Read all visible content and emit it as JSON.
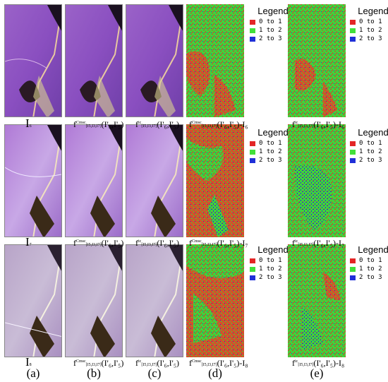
{
  "legend": {
    "title": "Legend",
    "items": [
      {
        "text": "0 to 1",
        "color": "#e32626"
      },
      {
        "text": "1 to 2",
        "color": "#42e03b"
      },
      {
        "text": "2 to 3",
        "color": "#1f2fd8"
      }
    ]
  },
  "rows": [
    {
      "I_label": "I",
      "I_sub": "6",
      "b_main": "f",
      "b_sup": "Cmsc",
      "b_sub": "[I5,I3,I7]",
      "b_arg": "(I'₆,I'₅)",
      "c_main": "f",
      "c_sup": "ic",
      "c_sub": "[I5,I3,I7]",
      "c_arg": "(I'₆,I'₅)",
      "d_main": "f",
      "d_sup": "Cmsc",
      "d_sub": "[I5,I3,I7]",
      "d_arg": "(I'₆,I'₅)-I₆",
      "e_main": "f",
      "e_sup": "ic",
      "e_sub": "[I5,I3,I7]",
      "e_arg": "(I'₆,I'₅)-I₆"
    },
    {
      "I_label": "I",
      "I_sub": "7",
      "b_main": "f",
      "b_sup": "Cmsc",
      "b_sub": "[I5,I3,I7]",
      "b_arg": "(I'₆,I'₅)",
      "c_main": "f",
      "c_sup": "ic",
      "c_sub": "[I5,I3,I7]",
      "c_arg": "(I'₆,I'₅)",
      "d_main": "f",
      "d_sup": "Cmsc",
      "d_sub": "[I5,I3,I7]",
      "d_arg": "(I'₆,I'₅)-I₇",
      "e_main": "f",
      "e_sup": "ic",
      "e_sub": "[I5,I3,I7]",
      "e_arg": "(I'₆,I'₅)-I₇"
    },
    {
      "I_label": "I",
      "I_sub": "8",
      "b_main": "f",
      "b_sup": "Cmsc",
      "b_sub": "[I5,I3,I7]",
      "b_arg": "(I'₆,I'₅)",
      "c_main": "f",
      "c_sup": "ic",
      "c_sub": "[I5,I3,I7]",
      "c_arg": "(I'₆,I'₅)",
      "d_main": "f",
      "d_sup": "Cmsc",
      "d_sub": "[I5,I3,I7]",
      "d_arg": "(I'₆,I'₅)-I₈",
      "e_main": "f",
      "e_sup": "ic",
      "e_sub": "[I5,I3,I7]",
      "e_arg": "(I'₆,I'₅)-I₈"
    }
  ],
  "panels": [
    "(a)",
    "(b)",
    "(c)",
    "(d)",
    "(e)"
  ]
}
